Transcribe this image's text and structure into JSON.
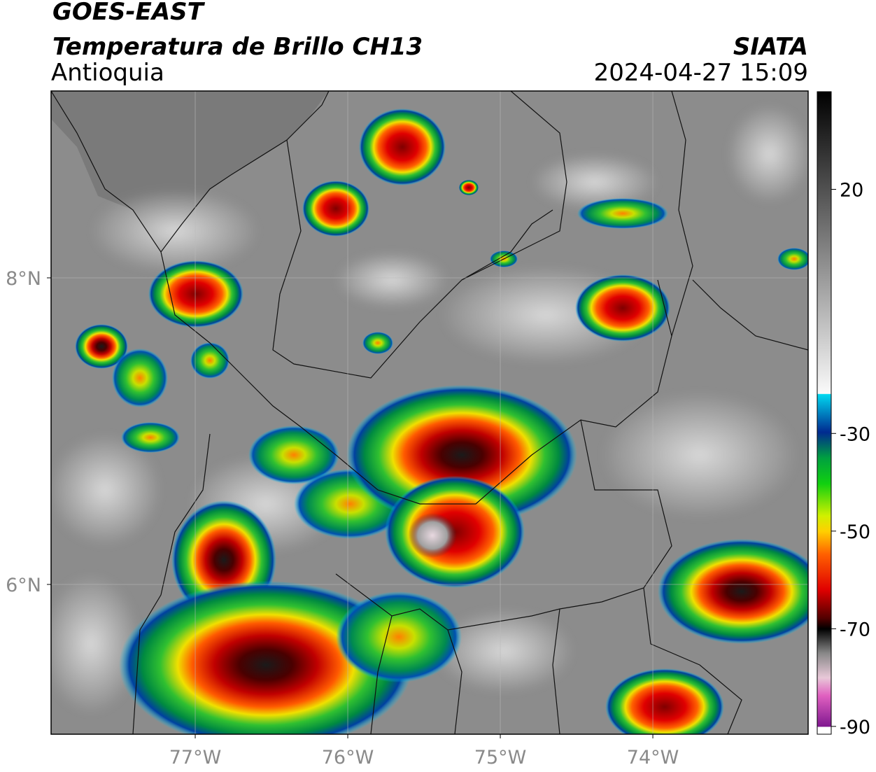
{
  "header": {
    "title": "GOES-EAST",
    "subtitle": "Temperatura de Brillo CH13",
    "region": "Antioquia",
    "source": "SIATA",
    "datetime": "2024-04-27 15:09"
  },
  "map": {
    "lonlim": [
      -77.945,
      -72.982
    ],
    "latlim": [
      5.023,
      9.219
    ],
    "lon_ticks": [
      {
        "value": -77,
        "label": "77°W"
      },
      {
        "value": -76,
        "label": "76°W"
      },
      {
        "value": -75,
        "label": "75°W"
      },
      {
        "value": -74,
        "label": "74°W"
      }
    ],
    "lat_ticks": [
      {
        "value": 8,
        "label": "8°N"
      },
      {
        "value": 6,
        "label": "6°N"
      }
    ],
    "grid": true
  },
  "colorbar": {
    "lim": [
      -91.6,
      40
    ],
    "ticks": [
      20,
      -30,
      -50,
      -70,
      -90
    ]
  }
}
